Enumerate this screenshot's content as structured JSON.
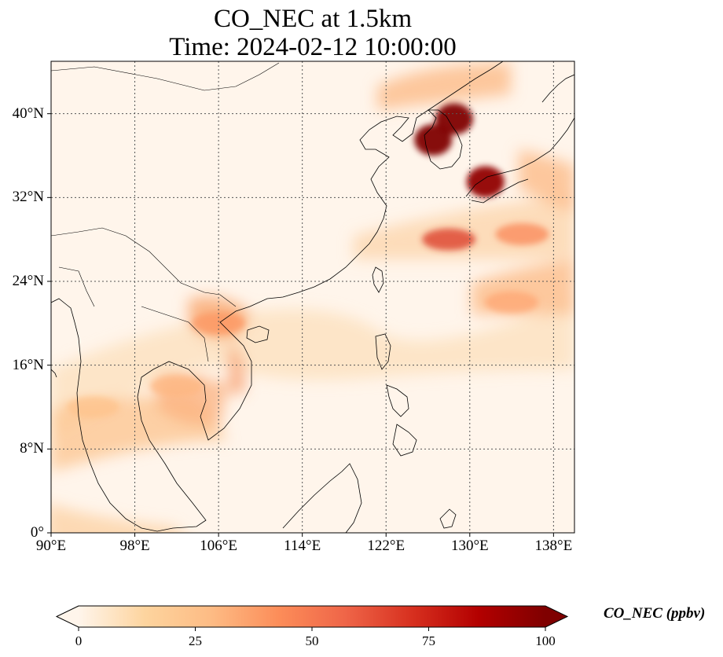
{
  "title": {
    "line1": "CO_NEC at 1.5km",
    "line2": "Time: 2024-02-12 10:00:00"
  },
  "map": {
    "extent": {
      "lon_min": 90,
      "lon_max": 140,
      "lat_min": 0,
      "lat_max": 45
    },
    "lat_ticks": [
      {
        "value": 0,
        "label": "0°"
      },
      {
        "value": 8,
        "label": "8°N"
      },
      {
        "value": 16,
        "label": "16°N"
      },
      {
        "value": 24,
        "label": "24°N"
      },
      {
        "value": 32,
        "label": "32°N"
      },
      {
        "value": 40,
        "label": "40°N"
      }
    ],
    "lon_ticks": [
      {
        "value": 90,
        "label": "90°E"
      },
      {
        "value": 98,
        "label": "98°E"
      },
      {
        "value": 106,
        "label": "106°E"
      },
      {
        "value": 114,
        "label": "114°E"
      },
      {
        "value": 122,
        "label": "122°E"
      },
      {
        "value": 130,
        "label": "130°E"
      },
      {
        "value": 138,
        "label": "138°E"
      }
    ],
    "gridlines": true,
    "colormap": "OrRd",
    "background_color": "#fff5eb",
    "hotspots": [
      {
        "name": "korea-west",
        "lon": 126.5,
        "lat": 37.5,
        "level": 100
      },
      {
        "name": "korea-north",
        "lon": 128.5,
        "lat": 39.5,
        "level": 100
      },
      {
        "name": "japan-kyushu",
        "lon": 131.5,
        "lat": 33.5,
        "level": 95
      },
      {
        "name": "east-china-sea",
        "lon": 128,
        "lat": 28,
        "level": 70
      },
      {
        "name": "sea-of-japan-plume",
        "lon": 135,
        "lat": 28.5,
        "level": 45
      },
      {
        "name": "pacific-plume",
        "lon": 134,
        "lat": 22,
        "level": 35
      },
      {
        "name": "north-vietnam",
        "lon": 106,
        "lat": 20,
        "level": 40
      },
      {
        "name": "indochina",
        "lon": 102,
        "lat": 14,
        "level": 30
      },
      {
        "name": "bay-of-bengal",
        "lon": 94,
        "lat": 12,
        "level": 25
      }
    ]
  },
  "colorbar": {
    "label": "CO_NEC (ppbv)",
    "min": 0,
    "max": 100,
    "ticks": [
      "0",
      "25",
      "50",
      "75",
      "100"
    ],
    "extend": "both",
    "colors": [
      "#fff5eb",
      "#fdd49e",
      "#fdbb84",
      "#fc8d59",
      "#ef6548",
      "#d7301f",
      "#b30000",
      "#7f0000"
    ]
  }
}
